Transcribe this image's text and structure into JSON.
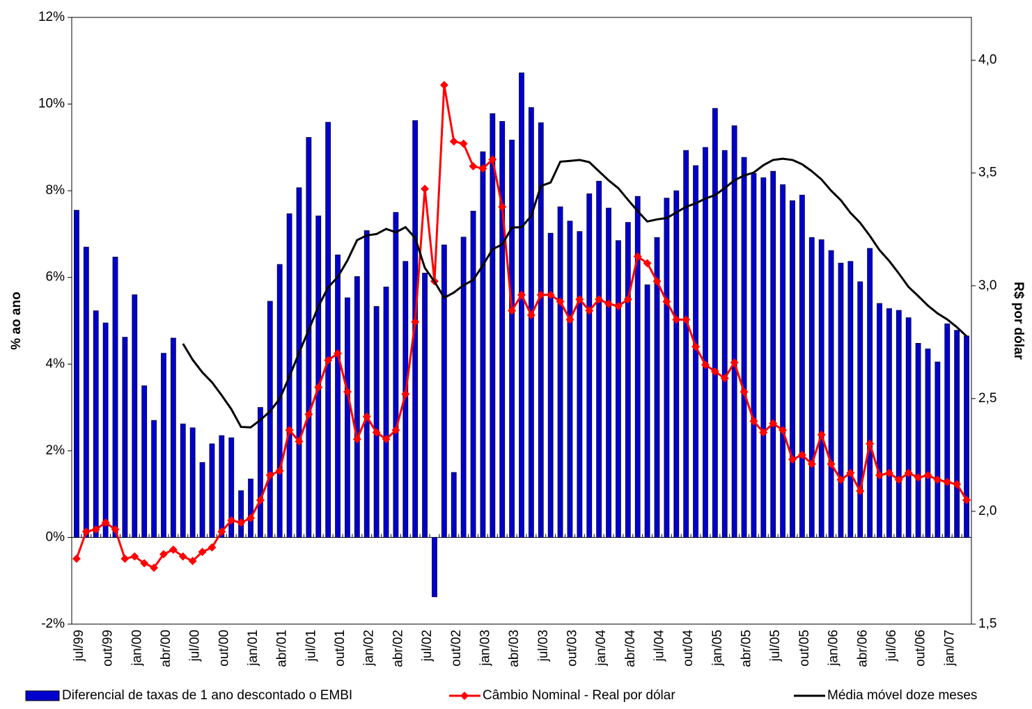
{
  "chart_data": {
    "type": "bar-line",
    "y_label": "% ao ano",
    "y2_label": "R$ por dólar",
    "categories": [
      "jul/99",
      null,
      null,
      "out/99",
      null,
      null,
      "jan/00",
      null,
      null,
      "abr/00",
      null,
      null,
      "jul/00",
      null,
      null,
      "out/00",
      null,
      null,
      "jan/01",
      null,
      null,
      "abr/01",
      null,
      null,
      "jul/01",
      null,
      null,
      "out/01",
      null,
      null,
      "jan/02",
      null,
      null,
      "abr/02",
      null,
      null,
      "jul/02",
      null,
      null,
      "out/02",
      null,
      null,
      "jan/03",
      null,
      null,
      "abr/03",
      null,
      null,
      "jul/03",
      null,
      null,
      "out/03",
      null,
      null,
      "jan/04",
      null,
      null,
      "abr/04",
      null,
      null,
      "jul/04",
      null,
      null,
      "out/04",
      null,
      null,
      "jan/05",
      null,
      null,
      "abr/05",
      null,
      null,
      "jul/05",
      null,
      null,
      "out/05",
      null,
      null,
      "jan/06",
      null,
      null,
      "abr/06",
      null,
      null,
      "jul/06",
      null,
      null,
      "out/06",
      null,
      null,
      "jan/07",
      null,
      null
    ],
    "series": [
      {
        "name": "Diferencial de taxas de 1 ano descontado o EMBI",
        "kind": "bar",
        "color": "#0000cc",
        "axis": "y",
        "values": [
          7.55,
          6.7,
          5.23,
          4.95,
          6.47,
          4.62,
          5.6,
          3.5,
          2.7,
          4.25,
          4.6,
          2.62,
          2.53,
          1.73,
          2.16,
          2.35,
          2.3,
          1.08,
          1.35,
          3.0,
          5.45,
          6.3,
          7.47,
          8.07,
          9.23,
          7.42,
          9.58,
          6.52,
          5.53,
          6.02,
          7.08,
          5.33,
          5.78,
          7.5,
          6.37,
          9.62,
          6.1,
          -1.37,
          6.75,
          1.5,
          6.93,
          7.53,
          8.9,
          9.78,
          9.6,
          9.17,
          10.72,
          9.92,
          9.57,
          7.02,
          7.63,
          7.3,
          7.06,
          7.93,
          8.22,
          7.6,
          6.85,
          7.27,
          7.87,
          5.83,
          6.92,
          7.83,
          8.0,
          8.93,
          8.58,
          9.0,
          9.9,
          8.93,
          9.5,
          8.77,
          8.4,
          8.3,
          8.45,
          8.14,
          7.77,
          7.9,
          6.92,
          6.87,
          6.62,
          6.33,
          6.37,
          5.9,
          6.67,
          5.4,
          5.28,
          5.24,
          5.07,
          4.48,
          4.35,
          4.05,
          4.93,
          4.78,
          4.65
        ]
      },
      {
        "name": "Câmbio Nominal - Real por dólar",
        "kind": "line",
        "marker": "diamond",
        "color": "#ff0000",
        "axis": "y2",
        "values": [
          1.79,
          1.91,
          1.92,
          1.95,
          1.92,
          1.79,
          1.8,
          1.77,
          1.75,
          1.81,
          1.83,
          1.8,
          1.78,
          1.82,
          1.84,
          1.91,
          1.96,
          1.95,
          1.97,
          2.05,
          2.16,
          2.18,
          2.36,
          2.31,
          2.43,
          2.55,
          2.67,
          2.7,
          2.53,
          2.32,
          2.42,
          2.35,
          2.32,
          2.36,
          2.52,
          2.84,
          3.43,
          3.02,
          3.89,
          3.64,
          3.63,
          3.53,
          3.52,
          3.56,
          3.35,
          2.89,
          2.96,
          2.87,
          2.96,
          2.96,
          2.93,
          2.85,
          2.94,
          2.89,
          2.94,
          2.92,
          2.91,
          2.94,
          3.13,
          3.1,
          3.02,
          2.93,
          2.85,
          2.85,
          2.73,
          2.65,
          2.62,
          2.59,
          2.66,
          2.53,
          2.4,
          2.35,
          2.39,
          2.36,
          2.23,
          2.25,
          2.21,
          2.34,
          2.21,
          2.14,
          2.17,
          2.09,
          2.3,
          2.16,
          2.17,
          2.14,
          2.17,
          2.15,
          2.16,
          2.14,
          2.13,
          2.12,
          2.05
        ]
      },
      {
        "name": "Média móvel doze meses",
        "kind": "line",
        "color": "#000000",
        "axis": "y",
        "values": [
          null,
          null,
          null,
          null,
          null,
          null,
          null,
          null,
          null,
          null,
          null,
          4.47,
          4.1,
          3.81,
          3.58,
          3.28,
          2.96,
          2.55,
          2.54,
          2.71,
          2.91,
          3.2,
          3.71,
          4.26,
          4.79,
          5.33,
          5.77,
          6.01,
          6.39,
          6.86,
          6.97,
          7.0,
          7.12,
          7.04,
          7.16,
          6.91,
          6.22,
          5.9,
          5.53,
          5.65,
          5.82,
          5.94,
          6.28,
          6.65,
          6.76,
          7.15,
          7.16,
          7.42,
          8.11,
          8.19,
          8.67,
          8.69,
          8.71,
          8.66,
          8.45,
          8.24,
          8.06,
          7.79,
          7.53,
          7.29,
          7.34,
          7.37,
          7.5,
          7.63,
          7.71,
          7.82,
          7.9,
          8.06,
          8.24,
          8.35,
          8.42,
          8.59,
          8.71,
          8.74,
          8.71,
          8.61,
          8.45,
          8.26,
          8.0,
          7.78,
          7.49,
          7.26,
          6.96,
          6.63,
          6.38,
          6.09,
          5.78,
          5.57,
          5.35,
          5.17,
          5.03,
          4.85,
          4.64
        ]
      }
    ],
    "ylim": [
      -2,
      12
    ],
    "yticks": [
      {
        "value": -2,
        "label": "-2%"
      },
      {
        "value": 0,
        "label": "0%"
      },
      {
        "value": 2,
        "label": "2%"
      },
      {
        "value": 4,
        "label": "4%"
      },
      {
        "value": 6,
        "label": "6%"
      },
      {
        "value": 8,
        "label": "8%"
      },
      {
        "value": 10,
        "label": "10%"
      },
      {
        "value": 12,
        "label": "12%"
      }
    ],
    "y2lim": [
      1.5,
      4.19
    ],
    "y2ticks": [
      {
        "value": 1.5,
        "label": "1,5"
      },
      {
        "value": 2.0,
        "label": "2,0"
      },
      {
        "value": 2.5,
        "label": "2,5"
      },
      {
        "value": 3.0,
        "label": "3,0"
      },
      {
        "value": 3.5,
        "label": "3,5"
      },
      {
        "value": 4.0,
        "label": "4,0"
      }
    ],
    "grid": false
  }
}
